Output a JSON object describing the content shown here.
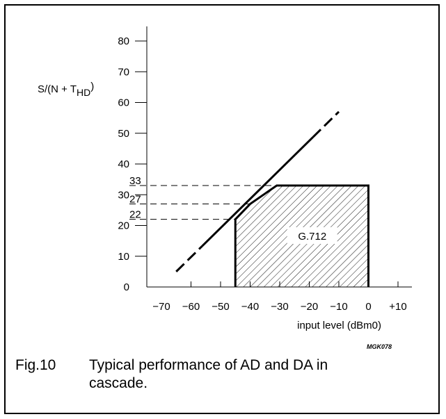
{
  "chart_data": {
    "type": "line",
    "ylabel_main": "S/(N + T",
    "ylabel_sub": "HD",
    "ylabel_close": ")",
    "xlabel": "input level (dBm0)",
    "xlim": [
      -70,
      10
    ],
    "ylim": [
      0,
      80
    ],
    "xticks": [
      -70,
      -60,
      -50,
      -40,
      -30,
      -20,
      -10,
      0,
      10
    ],
    "xtick_labels": [
      "−70",
      "−60",
      "−50",
      "−40",
      "−30",
      "−20",
      "−10",
      "0",
      "+10"
    ],
    "yticks": [
      0,
      10,
      20,
      30,
      40,
      50,
      60,
      70,
      80
    ],
    "ytick_labels": [
      "0",
      "10",
      "20",
      "30",
      "40",
      "50",
      "60",
      "70",
      "80"
    ],
    "series": [
      {
        "style": "dash-ends",
        "x": [
          -65,
          -10
        ],
        "y": [
          5,
          57
        ]
      }
    ],
    "region": {
      "label": "G.712",
      "fill": "hatched",
      "x": [
        -45,
        -45,
        -40,
        -31,
        0,
        0
      ],
      "y": [
        0,
        22,
        27,
        33,
        33,
        0
      ]
    },
    "reference_levels": [
      {
        "label": "33",
        "value": 33
      },
      {
        "label": "27",
        "value": 27
      },
      {
        "label": "22",
        "value": 22
      }
    ]
  },
  "figure_code": "MGK078",
  "caption": {
    "number": "Fig.10",
    "text": "Typical performance of AD and DA in cascade."
  }
}
